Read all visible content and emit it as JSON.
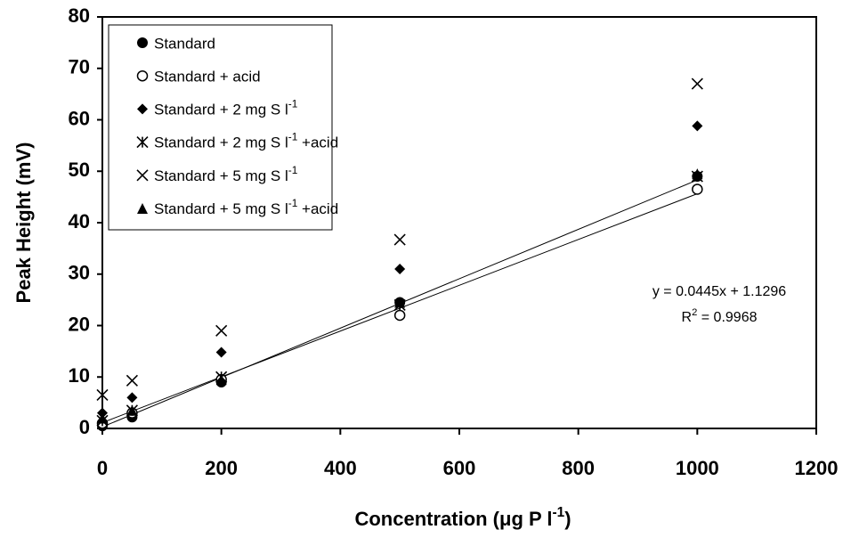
{
  "chart_data": {
    "type": "scatter",
    "x_label": [
      "Concentration (μg P l",
      "-1",
      ")"
    ],
    "y_label": "Peak Height (mV)",
    "x": [
      0,
      50,
      200,
      500,
      1000
    ],
    "xlim": [
      0,
      1200
    ],
    "xticks": [
      0,
      200,
      400,
      600,
      800,
      1000,
      1200
    ],
    "ylim": [
      0,
      80
    ],
    "yticks": [
      0,
      10,
      20,
      30,
      40,
      50,
      60,
      70,
      80
    ],
    "series": [
      {
        "name": "Standard",
        "marker": "filled-circle",
        "color": "#000000",
        "values": [
          0.5,
          2.2,
          9,
          24.5,
          49
        ]
      },
      {
        "name": "Standard + acid",
        "marker": "open-circle",
        "color": "#000000",
        "values": [
          1,
          3,
          9.5,
          22,
          46.5
        ]
      },
      {
        "name": [
          "Standard + 2 mg S l",
          "-1"
        ],
        "marker": "diamond",
        "color": "#000000",
        "values": [
          3,
          6,
          14.8,
          31,
          58.8
        ]
      },
      {
        "name": [
          "Standard + 2 mg S l",
          "-1",
          " +acid"
        ],
        "marker": "asterisk",
        "color": "#000000",
        "values": [
          1.5,
          3.5,
          10,
          24,
          49
        ]
      },
      {
        "name": [
          "Standard + 5 mg S l",
          "-1"
        ],
        "marker": "cross",
        "color": "#000000",
        "values": [
          6.5,
          9.3,
          19,
          36.7,
          67
        ]
      },
      {
        "name": [
          "Standard + 5 mg S l",
          "-1",
          " +acid"
        ],
        "marker": "triangle",
        "color": "#000000",
        "values": [
          2,
          3.5,
          9.5,
          24.5,
          49.5
        ]
      }
    ],
    "trendlines": [
      {
        "slope": 0.0445,
        "intercept": 1.1296
      },
      {
        "slope": 0.048,
        "intercept": 0.3
      }
    ],
    "annotations": [
      "y = 0.0445x + 1.1296",
      [
        "R",
        "2",
        " = 0.9968"
      ]
    ],
    "legend": "top-left"
  }
}
